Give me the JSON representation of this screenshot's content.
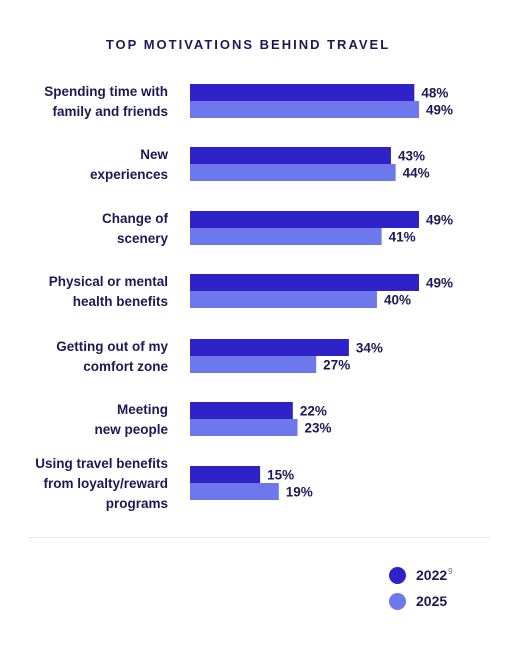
{
  "chart_data": {
    "type": "bar",
    "orientation": "horizontal",
    "title": "TOP MOTIVATIONS BEHIND TRAVEL",
    "categories": [
      [
        "Spending time with",
        "family and friends"
      ],
      [
        "New",
        "experiences"
      ],
      [
        "Change of",
        "scenery"
      ],
      [
        "Physical or mental",
        "health benefits"
      ],
      [
        "Getting out of my",
        "comfort zone"
      ],
      [
        "Meeting",
        "new people"
      ],
      [
        "Using travel benefits",
        "from loyalty/reward",
        "programs"
      ]
    ],
    "series": [
      {
        "name": "2022",
        "footnote": "9",
        "color": "#2f22c9",
        "values": [
          48,
          43,
          49,
          49,
          34,
          22,
          15
        ]
      },
      {
        "name": "2025",
        "color": "#6d78ec",
        "values": [
          49,
          44,
          41,
          40,
          27,
          23,
          19
        ]
      }
    ],
    "value_suffix": "%",
    "xlim": [
      0,
      49
    ],
    "grid": false,
    "legend_position": "bottom-right"
  }
}
